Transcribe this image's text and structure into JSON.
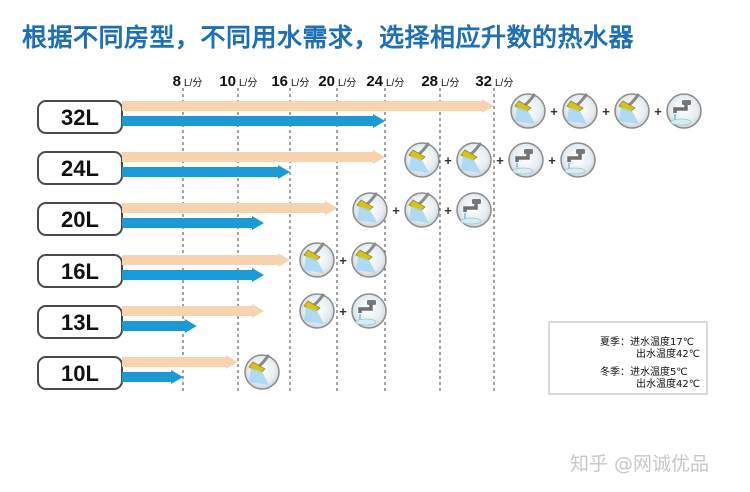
{
  "title": "根据不同房型，不同用水需求，选择相应升数的热水器",
  "watermark": "知乎 @网诚优品",
  "colors": {
    "summer": "#f8d3b0",
    "winter": "#1c9ad6",
    "title": "#1d6fb8"
  },
  "chart_data": {
    "type": "bar",
    "orientation": "horizontal",
    "x_ticks": [
      {
        "value": "8",
        "unit": "L/分"
      },
      {
        "value": "10",
        "unit": "L/分"
      },
      {
        "value": "16",
        "unit": "L/分"
      },
      {
        "value": "20",
        "unit": "L/分"
      },
      {
        "value": "24",
        "unit": "L/分"
      },
      {
        "value": "28",
        "unit": "L/分"
      },
      {
        "value": "32",
        "unit": "L/分"
      }
    ],
    "categories": [
      "32L",
      "24L",
      "20L",
      "16L",
      "13L",
      "10L"
    ],
    "series": [
      {
        "name": "夏季：进水温度17℃ 出水温度42℃",
        "values": [
          32,
          24,
          20,
          16,
          13,
          10
        ]
      },
      {
        "name": "冬季：进水温度5℃ 出水温度42℃",
        "values": [
          24,
          16,
          13,
          13,
          8.5,
          8
        ]
      }
    ],
    "usage_icons": {
      "32L": [
        "shower-icon",
        "shower-icon",
        "shower-icon",
        "faucet-icon"
      ],
      "24L": [
        "shower-icon",
        "shower-icon",
        "faucet-icon",
        "faucet-icon"
      ],
      "20L": [
        "shower-icon",
        "shower-icon",
        "faucet-icon"
      ],
      "16L": [
        "shower-icon",
        "shower-icon"
      ],
      "13L": [
        "shower-icon",
        "faucet-icon"
      ],
      "10L": [
        "shower-icon"
      ]
    },
    "legend": [
      {
        "label_1": "夏季：进水温度17℃",
        "label_2": "出水温度42℃",
        "color": "#f8d3b0"
      },
      {
        "label_1": "冬季：进水温度5℃",
        "label_2": "出水温度42℃",
        "color": "#1c9ad6"
      }
    ],
    "legend_position": "bottom-right"
  }
}
